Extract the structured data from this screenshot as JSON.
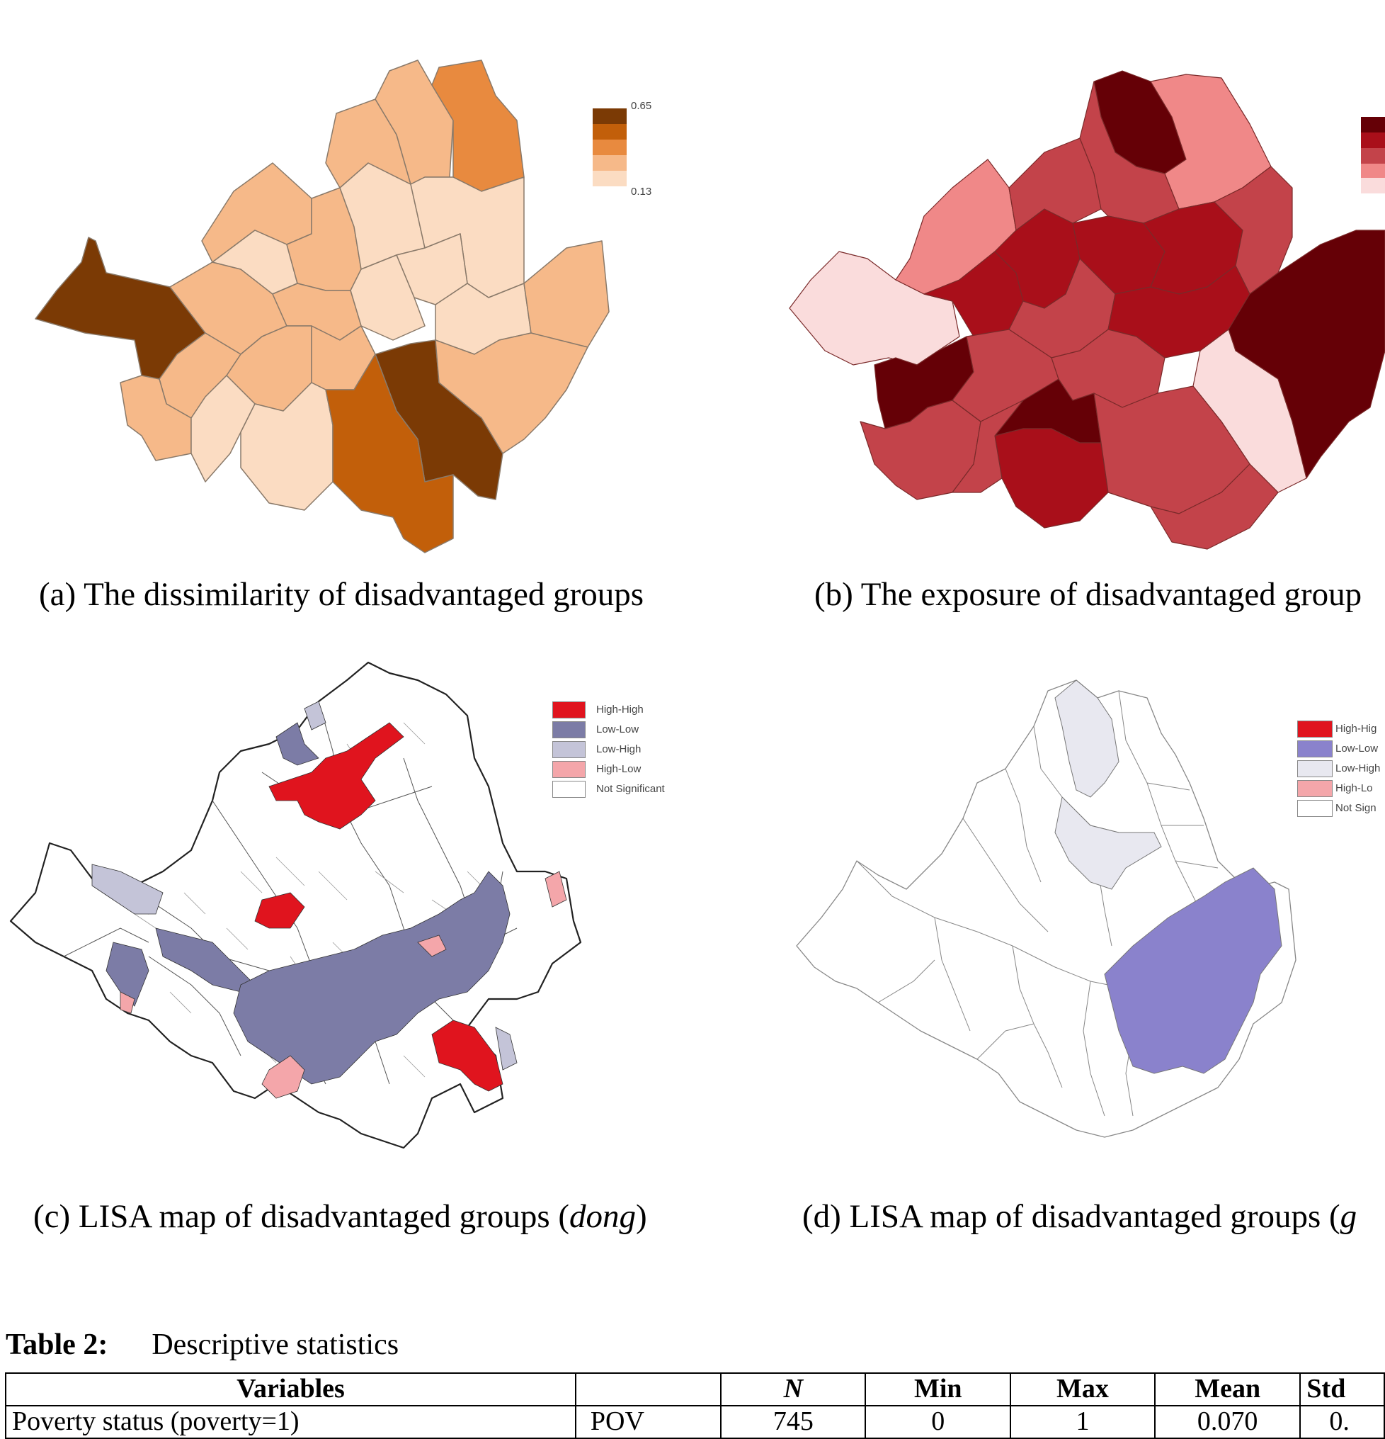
{
  "panels": [
    {
      "id": "a",
      "caption": "(a) The dissimilarity of disadvantaged groups",
      "legend": {
        "max": "0.65",
        "min": "0.13",
        "colors": [
          "#7b3a05",
          "#c25f0a",
          "#e88a3f",
          "#f6b989",
          "#fbdcc2"
        ]
      }
    },
    {
      "id": "b",
      "caption": "(b) The exposure of disadvantaged group",
      "legend": {
        "colors": [
          "#650006",
          "#a90f1a",
          "#c3434a",
          "#f08888",
          "#fadcdc"
        ]
      }
    },
    {
      "id": "c",
      "caption_parts": [
        "(c) LISA map of disadvantaged groups (",
        "dong",
        ")"
      ],
      "legend": [
        {
          "label": "High-High",
          "color": "#e0141e"
        },
        {
          "label": "Low-Low",
          "color": "#7c7ca6"
        },
        {
          "label": "Low-High",
          "color": "#c4c4d8"
        },
        {
          "label": "High-Low",
          "color": "#f4a6aa"
        },
        {
          "label": "Not Significant",
          "color": "#ffffff"
        }
      ]
    },
    {
      "id": "d",
      "caption_parts": [
        "(d) LISA map of disadvantaged groups (",
        "g"
      ],
      "legend": [
        {
          "label": "High-Hig",
          "color": "#e0141e"
        },
        {
          "label": "Low-Low",
          "color": "#8a82cc"
        },
        {
          "label": "Low-High",
          "color": "#e8e8f0"
        },
        {
          "label": "High-Lo",
          "color": "#f4a6aa"
        },
        {
          "label": "Not Sign",
          "color": "#ffffff"
        }
      ]
    }
  ],
  "table": {
    "label": "Table 2:",
    "title": "Descriptive statistics",
    "headers": [
      "Variables",
      "",
      "N",
      "Min",
      "Max",
      "Mean",
      "Std"
    ],
    "rows": [
      [
        "Poverty status (poverty=1)",
        "POV",
        "745",
        "0",
        "1",
        "0.070",
        "0."
      ]
    ]
  }
}
